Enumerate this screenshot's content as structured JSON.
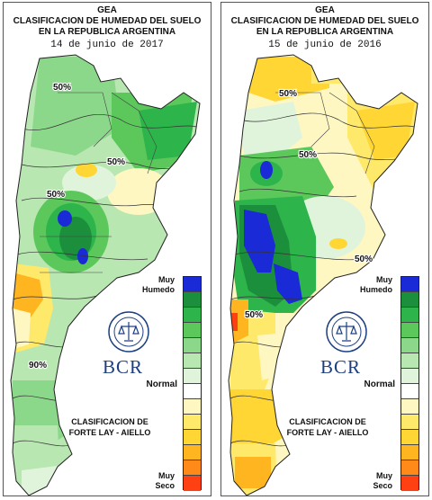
{
  "colors": {
    "legend": [
      "#1a2ad6",
      "#1c8f3c",
      "#2db44a",
      "#5cc85c",
      "#8cd88a",
      "#b8e7b2",
      "#e0f4dc",
      "#ffffff",
      "#fff7c2",
      "#ffe96b",
      "#ffd633",
      "#ffb51f",
      "#ff8a1a",
      "#ff4013"
    ],
    "accent_text": "#1c3f82"
  },
  "maps": [
    {
      "header_line1": "GEA",
      "header_line2": "CLASIFICACION DE HUMEDAD DEL SUELO",
      "header_line3": "EN LA REPUBLICA ARGENTINA",
      "date": "14 de junio de 2017",
      "contour_labels": [
        "50%",
        "50%",
        "50%",
        "90%"
      ],
      "legend_top": "Muy\nHumedo",
      "legend_mid": "Normal",
      "classification": "CLASIFICACION DE\nFORTE LAY - AIELLO",
      "legend_bottom": "Muy\nSeco",
      "logo_text": "BCR"
    },
    {
      "header_line1": "GEA",
      "header_line2": "CLASIFICACION DE HUMEDAD DEL SUELO",
      "header_line3": "EN LA REPUBLICA ARGENTINA",
      "date": "15 de junio de 2016",
      "contour_labels": [
        "50%",
        "50%",
        "50%",
        "50%"
      ],
      "legend_top": "Muy\nHumedo",
      "legend_mid": "Normal",
      "classification": "CLASIFICACION DE\nFORTE LAY - AIELLO",
      "legend_bottom": "Muy\nSeco",
      "logo_text": "BCR"
    }
  ]
}
